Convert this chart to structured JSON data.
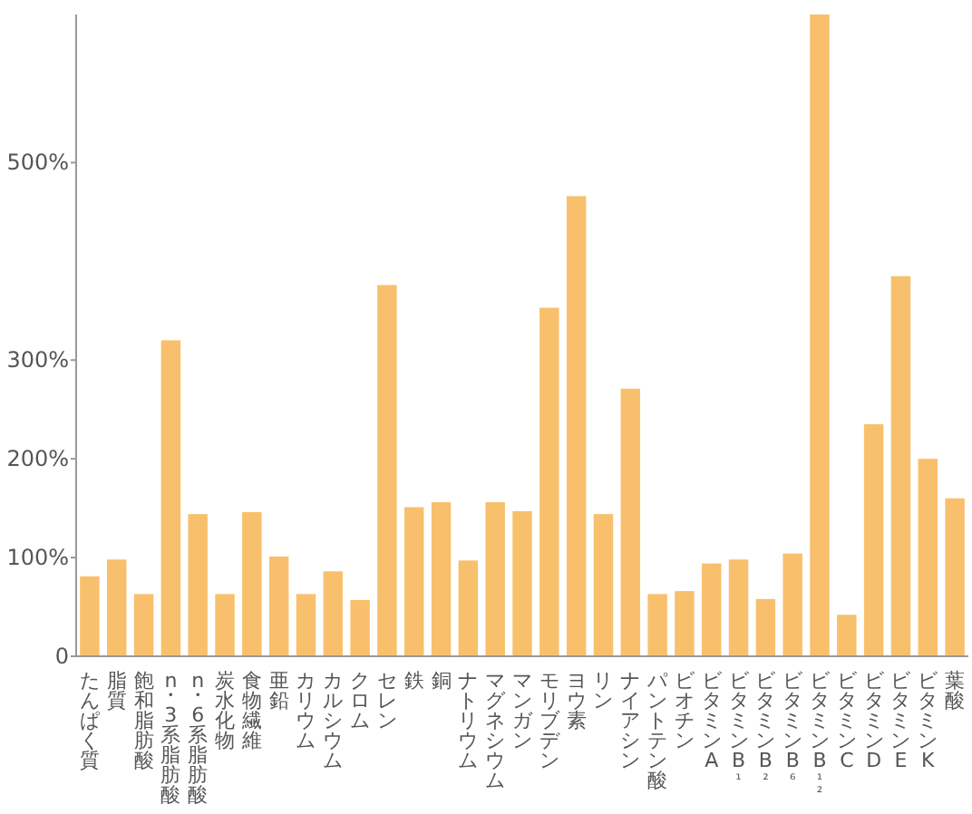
{
  "chart_data": {
    "type": "bar",
    "color": "#f8c06c",
    "categories": [
      "たんぱく質",
      "脂質",
      "飽和脂肪酸",
      "n・3系脂肪酸",
      "n・6系脂肪酸",
      "炭水化物",
      "食物繊維",
      "亜鉛",
      "カリウム",
      "カルシウム",
      "クロム",
      "セレン",
      "鉄",
      "銅",
      "ナトリウム",
      "マグネシウム",
      "マンガン",
      "モリブデン",
      "ヨウ素",
      "リン",
      "ナイアシン",
      "パントテン酸",
      "ビオチン",
      "ビタミンA",
      "ビタミンB₁",
      "ビタミンB₂",
      "ビタミンB₆",
      "ビタミンB₁₂",
      "ビタミンC",
      "ビタミンD",
      "ビタミンE",
      "ビタミンK",
      "葉酸"
    ],
    "values": [
      81,
      98,
      63,
      320,
      144,
      63,
      146,
      101,
      63,
      86,
      57,
      376,
      151,
      156,
      97,
      156,
      147,
      353,
      466,
      144,
      271,
      63,
      66,
      94,
      98,
      58,
      104,
      650,
      42,
      235,
      385,
      200,
      160
    ],
    "ylim": [
      0,
      650
    ],
    "yticks": [
      0,
      {
        "value": 100,
        "label": "100%"
      },
      {
        "value": 200,
        "label": "200%"
      },
      {
        "value": 300,
        "label": "300%"
      },
      {
        "value": 500,
        "label": "500%"
      }
    ],
    "grid": false
  }
}
